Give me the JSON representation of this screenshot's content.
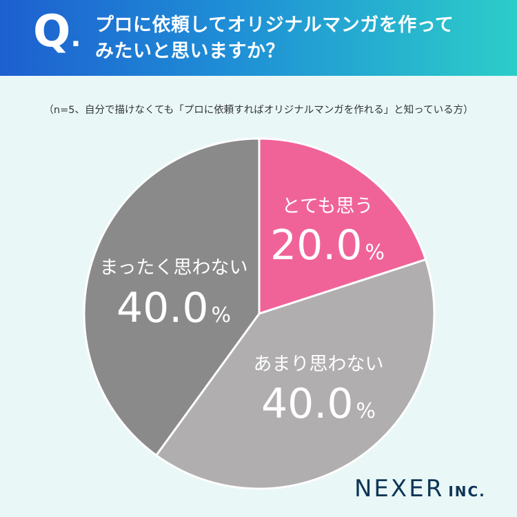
{
  "header": {
    "q_letter": "Q",
    "q_dot": ".",
    "question_line1": "プロに依頼してオリジナルマンガを作って",
    "question_line2": "みたいと思いますか？"
  },
  "note": "（n=5、自分で描けなくても「プロに依頼すればオリジナルマンガを作れる」と知っている方）",
  "logo": {
    "name": "NEXER",
    "suffix": "INC."
  },
  "colors": {
    "pink": "#f06399",
    "light_gray": "#b0aeae",
    "dark_gray": "#8a8a8a",
    "header_start": "#1d5fd0",
    "header_end": "#2ccdc9",
    "background": "#e9f7f7"
  },
  "chart_data": {
    "type": "pie",
    "start_angle_deg": 0,
    "direction": "clockwise",
    "slices": [
      {
        "label": "とても思う",
        "value": 20.0,
        "display": "20.0",
        "unit": "%",
        "color": "#f06399"
      },
      {
        "label": "あまり思わない",
        "value": 40.0,
        "display": "40.0",
        "unit": "%",
        "color": "#b0aeae"
      },
      {
        "label": "まったく思わない",
        "value": 40.0,
        "display": "40.0",
        "unit": "%",
        "color": "#8a8a8a"
      }
    ]
  }
}
